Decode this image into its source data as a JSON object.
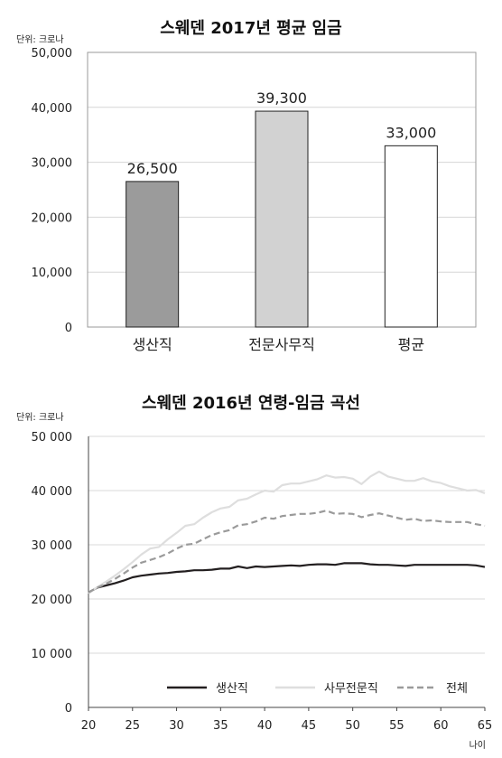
{
  "chart_data": [
    {
      "type": "bar",
      "title": "스웨덴 2017년 평균 임금",
      "unit_label": "단위: 크로나",
      "categories": [
        "생산직",
        "전문사무직",
        "평균"
      ],
      "values": [
        26500,
        39300,
        33000
      ],
      "value_labels": [
        "26,500",
        "39,300",
        "33,000"
      ],
      "colors": [
        "#9b9b9b",
        "#d2d2d2",
        "#ffffff"
      ],
      "ylim": [
        0,
        50000
      ],
      "yticks": [
        0,
        10000,
        20000,
        30000,
        40000,
        50000
      ],
      "ytick_labels": [
        "0",
        "10,000",
        "20,000",
        "30,000",
        "40,000",
        "50,000"
      ],
      "grid": true
    },
    {
      "type": "line",
      "title": "스웨덴 2016년 연령-임금 곡선",
      "unit_label": "단위: 크로나",
      "xlabel": "나이",
      "xlim": [
        20,
        65
      ],
      "xticks": [
        20,
        25,
        30,
        35,
        40,
        45,
        50,
        55,
        60,
        65
      ],
      "xtick_labels": [
        "20",
        "25",
        "30",
        "35",
        "40",
        "45",
        "50",
        "55",
        "60",
        "65"
      ],
      "ylim": [
        0,
        50000
      ],
      "yticks": [
        0,
        10000,
        20000,
        30000,
        40000,
        50000
      ],
      "ytick_labels": [
        "0",
        "10 000",
        "20 000",
        "30 000",
        "40 000",
        "50 000"
      ],
      "grid": true,
      "legend": "bottom-right",
      "x": [
        20,
        21,
        22,
        23,
        24,
        25,
        26,
        27,
        28,
        29,
        30,
        31,
        32,
        33,
        34,
        35,
        36,
        37,
        38,
        39,
        40,
        41,
        42,
        43,
        44,
        45,
        46,
        47,
        48,
        49,
        50,
        51,
        52,
        53,
        54,
        55,
        56,
        57,
        58,
        59,
        60,
        61,
        62,
        63,
        64,
        65
      ],
      "series": [
        {
          "name": "생산직",
          "color": "#231f20",
          "style": "solid",
          "values": [
            21200,
            22100,
            22500,
            22900,
            23400,
            24000,
            24300,
            24500,
            24700,
            24800,
            25000,
            25100,
            25300,
            25300,
            25400,
            25600,
            25600,
            26000,
            25700,
            26000,
            25900,
            26000,
            26100,
            26200,
            26100,
            26300,
            26400,
            26400,
            26300,
            26600,
            26600,
            26600,
            26400,
            26300,
            26300,
            26200,
            26100,
            26300,
            26300,
            26300,
            26300,
            26300,
            26300,
            26300,
            26200,
            25900
          ]
        },
        {
          "name": "사무전문직",
          "color": "#dedede",
          "style": "solid",
          "values": [
            21000,
            22200,
            23200,
            24300,
            25500,
            26800,
            28200,
            29300,
            29600,
            31000,
            32200,
            33500,
            33800,
            35000,
            36000,
            36700,
            37000,
            38200,
            38500,
            39300,
            40000,
            39800,
            41000,
            41300,
            41300,
            41700,
            42100,
            42800,
            42400,
            42500,
            42200,
            41200,
            42600,
            43500,
            42600,
            42200,
            41800,
            41800,
            42300,
            41700,
            41400,
            40800,
            40400,
            40000,
            40100,
            39500
          ]
        },
        {
          "name": "전체",
          "color": "#9a9a9a",
          "style": "dashed",
          "values": [
            21200,
            22100,
            22800,
            23700,
            24700,
            25800,
            26700,
            27200,
            27700,
            28400,
            29300,
            30000,
            30200,
            31000,
            31800,
            32300,
            32700,
            33600,
            33800,
            34300,
            35000,
            34800,
            35300,
            35500,
            35700,
            35700,
            35900,
            36300,
            35700,
            35800,
            35700,
            35100,
            35500,
            35800,
            35400,
            35000,
            34600,
            34800,
            34400,
            34500,
            34300,
            34200,
            34200,
            34200,
            33800,
            33500
          ]
        }
      ]
    }
  ]
}
